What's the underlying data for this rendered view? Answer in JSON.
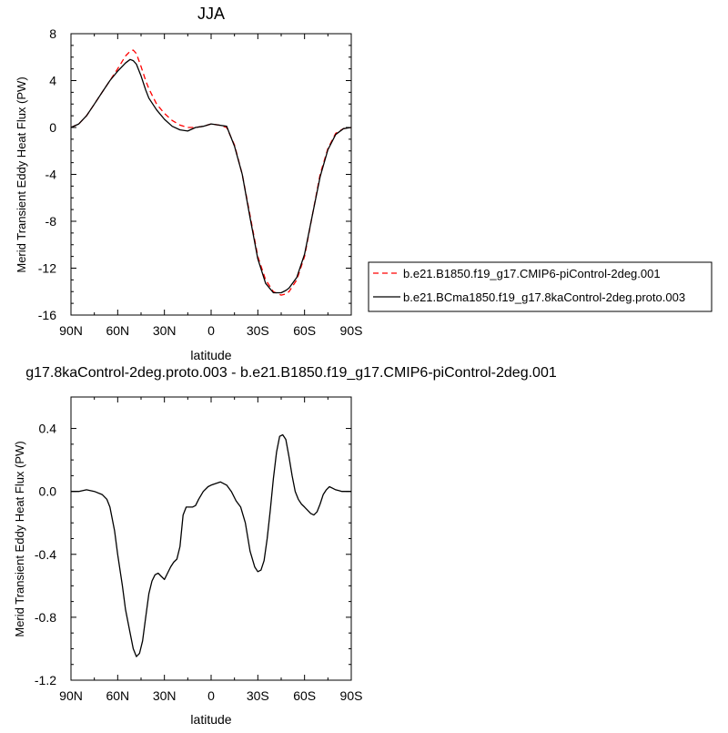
{
  "chart_data": [
    {
      "type": "line",
      "title": "JJA",
      "xlabel": "latitude",
      "ylabel": "Merid Transient Eddy Heat Flux (PW)",
      "xlim": [
        -90,
        90
      ],
      "ylim": [
        -16,
        8
      ],
      "x_tick_values": [
        -90,
        -60,
        -30,
        0,
        30,
        60,
        90
      ],
      "x_tick_labels": [
        "90N",
        "60N",
        "30N",
        "0",
        "30S",
        "60S",
        "90S"
      ],
      "y_tick_values": [
        8,
        4,
        0,
        -4,
        -8,
        -12,
        -16
      ],
      "y_tick_labels": [
        "8",
        "4",
        "0",
        "-4",
        "-8",
        "-12",
        "-16"
      ],
      "grid": false,
      "legend_position": "right",
      "series": [
        {
          "name": "b.e21.B1850.f19_g17.CMIP6-piControl-2deg.001",
          "color": "#ff0000",
          "dash": "dashed",
          "x": [
            -90,
            -85,
            -80,
            -75,
            -70,
            -65,
            -60,
            -55,
            -52,
            -50,
            -48,
            -45,
            -42,
            -40,
            -35,
            -30,
            -25,
            -20,
            -15,
            -10,
            -5,
            0,
            5,
            10,
            15,
            20,
            25,
            30,
            35,
            40,
            45,
            48,
            50,
            55,
            60,
            65,
            70,
            75,
            80,
            85,
            90
          ],
          "y": [
            0,
            0.3,
            1,
            2,
            3,
            4,
            5,
            6.1,
            6.5,
            6.6,
            6.3,
            5.2,
            4,
            3.3,
            2,
            1.2,
            0.6,
            0.2,
            0,
            0,
            0.1,
            0.3,
            0.2,
            0,
            -1.5,
            -4,
            -7.5,
            -11,
            -13,
            -14,
            -14.3,
            -14.2,
            -14,
            -13,
            -11,
            -7.5,
            -4,
            -1.8,
            -0.5,
            -0.1,
            0
          ]
        },
        {
          "name": "b.e21.BCma1850.f19_g17.8kaControl-2deg.proto.003",
          "color": "#000000",
          "dash": "solid",
          "x": [
            -90,
            -85,
            -80,
            -75,
            -70,
            -65,
            -60,
            -55,
            -52,
            -50,
            -48,
            -45,
            -42,
            -40,
            -35,
            -30,
            -25,
            -20,
            -15,
            -10,
            -5,
            0,
            5,
            10,
            15,
            20,
            25,
            30,
            35,
            40,
            45,
            48,
            50,
            55,
            60,
            65,
            70,
            75,
            80,
            85,
            90
          ],
          "y": [
            0,
            0.3,
            1,
            2,
            3,
            4,
            4.8,
            5.5,
            5.8,
            5.7,
            5.4,
            4.4,
            3.2,
            2.5,
            1.5,
            0.7,
            0.1,
            -0.2,
            -0.3,
            0,
            0.1,
            0.3,
            0.2,
            0.1,
            -1.6,
            -4,
            -7.7,
            -11.2,
            -13.3,
            -14.1,
            -14.1,
            -13.9,
            -13.7,
            -12.8,
            -10.8,
            -7.5,
            -4.2,
            -1.9,
            -0.6,
            -0.1,
            0
          ]
        }
      ]
    },
    {
      "type": "line",
      "title": "g17.8kaControl-2deg.proto.003 - b.e21.B1850.f19_g17.CMIP6-piControl-2deg.001",
      "xlabel": "latitude",
      "ylabel": "Merid Transient Eddy Heat Flux (PW)",
      "xlim": [
        -90,
        90
      ],
      "ylim": [
        -1.2,
        0.6
      ],
      "x_tick_values": [
        -90,
        -60,
        -30,
        0,
        30,
        60,
        90
      ],
      "x_tick_labels": [
        "90N",
        "60N",
        "30N",
        "0",
        "30S",
        "60S",
        "90S"
      ],
      "y_tick_values": [
        0.4,
        0.0,
        -0.4,
        -0.8,
        -1.2
      ],
      "y_tick_labels": [
        "0.4",
        "0.0",
        "-0.4",
        "-0.8",
        "-1.2"
      ],
      "grid": false,
      "series": [
        {
          "color": "#000000",
          "dash": "solid",
          "x": [
            -90,
            -85,
            -80,
            -75,
            -70,
            -67,
            -65,
            -62,
            -60,
            -57,
            -55,
            -52,
            -50,
            -48,
            -46,
            -44,
            -42,
            -40,
            -38,
            -36,
            -34,
            -32,
            -30,
            -28,
            -26,
            -24,
            -22,
            -20,
            -18,
            -16,
            -14,
            -12,
            -10,
            -8,
            -5,
            -2,
            0,
            3,
            6,
            10,
            13,
            16,
            19,
            22,
            25,
            28,
            30,
            32,
            34,
            36,
            38,
            40,
            42,
            44,
            46,
            48,
            50,
            52,
            54,
            56,
            58,
            60,
            62,
            64,
            66,
            68,
            70,
            72,
            74,
            76,
            78,
            80,
            82,
            84,
            86,
            88,
            90
          ],
          "y": [
            0,
            0,
            0.01,
            0,
            -0.02,
            -0.05,
            -0.1,
            -0.25,
            -0.4,
            -0.6,
            -0.75,
            -0.9,
            -1,
            -1.05,
            -1.03,
            -0.95,
            -0.8,
            -0.65,
            -0.57,
            -0.53,
            -0.52,
            -0.54,
            -0.56,
            -0.52,
            -0.48,
            -0.45,
            -0.43,
            -0.35,
            -0.15,
            -0.1,
            -0.1,
            -0.1,
            -0.09,
            -0.05,
            0,
            0.03,
            0.04,
            0.05,
            0.06,
            0.04,
            0,
            -0.06,
            -0.1,
            -0.2,
            -0.38,
            -0.48,
            -0.51,
            -0.5,
            -0.44,
            -0.3,
            -0.12,
            0.08,
            0.25,
            0.35,
            0.36,
            0.33,
            0.22,
            0.1,
            0,
            -0.05,
            -0.08,
            -0.1,
            -0.12,
            -0.14,
            -0.15,
            -0.13,
            -0.08,
            -0.02,
            0.01,
            0.03,
            0.02,
            0.01,
            0.005,
            0,
            0,
            0,
            0
          ]
        }
      ]
    }
  ]
}
